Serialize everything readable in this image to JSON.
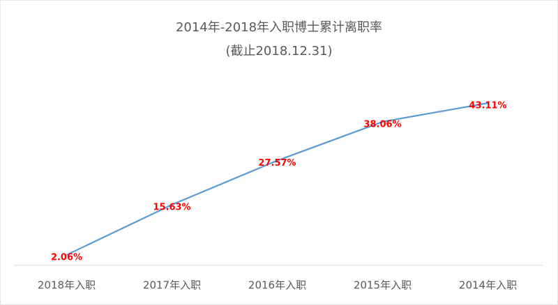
{
  "chart_data": {
    "type": "line",
    "title": "2014年-2018年入职博士累计离职率",
    "subtitle": "(截止2018.12.31)",
    "categories": [
      "2018年入职",
      "2017年入职",
      "2016年入职",
      "2015年入职",
      "2014年入职"
    ],
    "values": [
      2.06,
      15.63,
      27.57,
      38.06,
      43.11
    ],
    "value_labels": [
      "2.06%",
      "15.63%",
      "27.57%",
      "38.06%",
      "43.11%"
    ],
    "color": "#5b9bd5",
    "label_color": "#ff0000"
  }
}
